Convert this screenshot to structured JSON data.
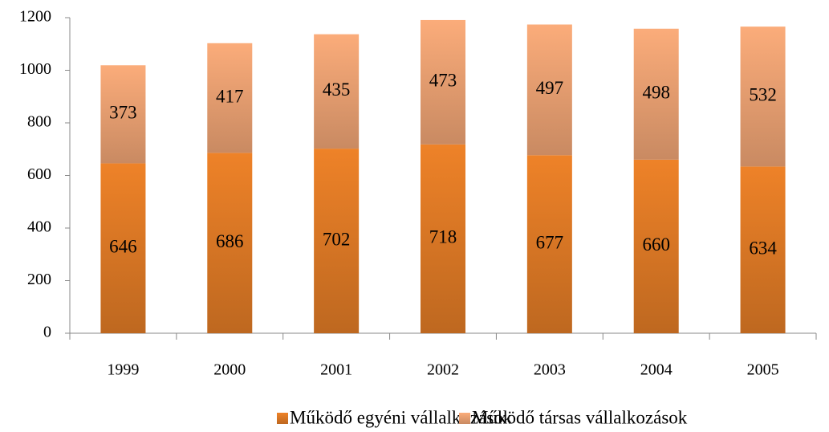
{
  "chart_data": {
    "type": "stacked_bar",
    "categories": [
      "1999",
      "2000",
      "2001",
      "2002",
      "2003",
      "2004",
      "2005"
    ],
    "series": [
      {
        "name": "Működő egyéni vállalkozások",
        "color": "#ee8228",
        "values": [
          646,
          686,
          702,
          718,
          677,
          660,
          634
        ]
      },
      {
        "name": "Működő társas vállalkozások",
        "color": "#fbac7a",
        "values": [
          373,
          417,
          435,
          473,
          497,
          498,
          532
        ]
      }
    ],
    "ylim": [
      0,
      1200
    ],
    "yticks": [
      0,
      200,
      400,
      600,
      800,
      1000,
      1200
    ],
    "legend": "bottom"
  }
}
